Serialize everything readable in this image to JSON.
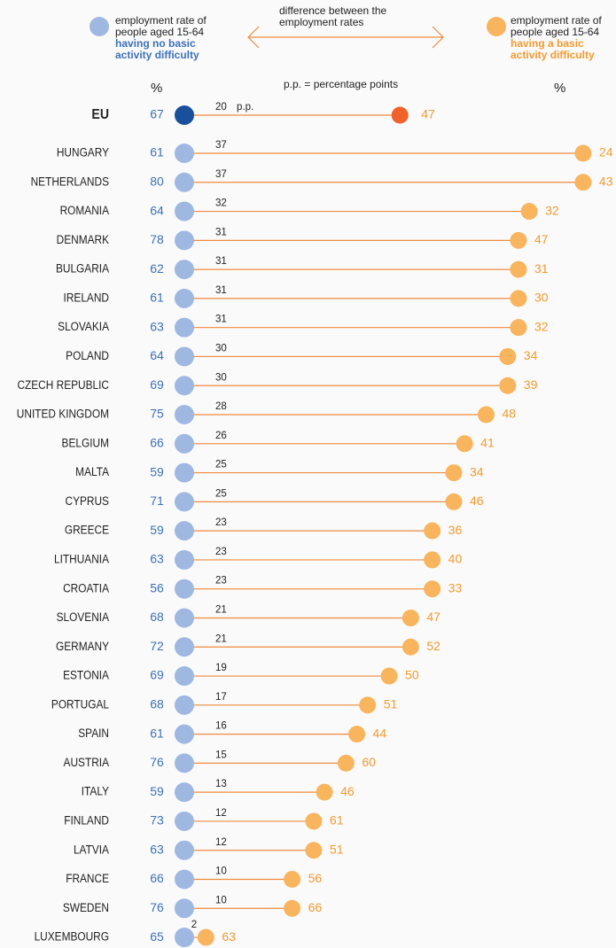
{
  "chart_data": {
    "type": "dumbbell",
    "categories": [
      "EU",
      "HUNGARY",
      "NETHERLANDS",
      "ROMANIA",
      "DENMARK",
      "BULGARIA",
      "IRELAND",
      "SLOVAKIA",
      "POLAND",
      "CZECH REPUBLIC",
      "UNITED KINGDOM",
      "BELGIUM",
      "MALTA",
      "CYPRUS",
      "GREECE",
      "LITHUANIA",
      "CROATIA",
      "SLOVENIA",
      "GERMANY",
      "ESTONIA",
      "PORTUGAL",
      "SPAIN",
      "AUSTRIA",
      "ITALY",
      "FINLAND",
      "LATVIA",
      "FRANCE",
      "SWEDEN",
      "LUXEMBOURG"
    ],
    "series": [
      {
        "name": "employment rate of people aged 15-64",
        "detail": "having no basic activity difficulty",
        "unit": "%",
        "color": "#9fb8e2",
        "highlight_color": "#1a4f9c",
        "text_color": "#3d71b8",
        "values": [
          67,
          61,
          80,
          64,
          78,
          62,
          61,
          63,
          64,
          69,
          75,
          66,
          59,
          71,
          59,
          63,
          56,
          68,
          72,
          69,
          68,
          61,
          76,
          59,
          73,
          63,
          66,
          76,
          65
        ]
      },
      {
        "name": "employment rate of people aged 15-64",
        "detail": "having a basic activity difficulty",
        "unit": "%",
        "color": "#f9b45e",
        "highlight_color": "#f0622a",
        "text_color": "#f39a2f",
        "values": [
          47,
          24,
          43,
          32,
          47,
          31,
          30,
          32,
          34,
          39,
          48,
          41,
          34,
          46,
          36,
          40,
          33,
          47,
          52,
          50,
          51,
          44,
          60,
          46,
          61,
          51,
          56,
          66,
          63
        ]
      }
    ],
    "difference": {
      "name": "difference between the employment rates",
      "unit": "p.p.",
      "note": "p.p. = percentage points",
      "color": "#f08a3c",
      "values": [
        20,
        37,
        37,
        32,
        31,
        31,
        31,
        31,
        30,
        30,
        28,
        26,
        25,
        25,
        23,
        23,
        23,
        21,
        21,
        19,
        17,
        16,
        15,
        13,
        12,
        12,
        10,
        10,
        2
      ]
    }
  }
}
